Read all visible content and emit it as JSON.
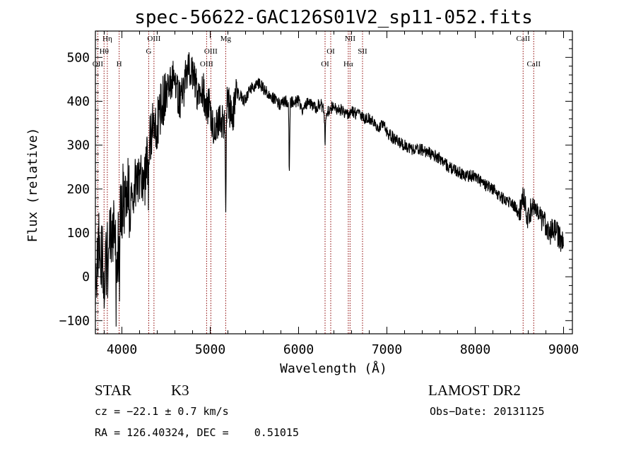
{
  "chart_data": {
    "type": "line",
    "title": "spec-56622-GAC126S01V2_sp11-052.fits",
    "xlabel": "Wavelength (Å)",
    "ylabel": "Flux (relative)",
    "xlim": [
      3700,
      9100
    ],
    "ylim": [
      -130,
      560
    ],
    "x_ticks": [
      4000,
      5000,
      6000,
      7000,
      8000,
      9000
    ],
    "y_ticks": [
      -100,
      0,
      100,
      200,
      300,
      400,
      500
    ],
    "grid": false,
    "line_color": "#000000",
    "marker_color": "#8b0000",
    "series": [
      {
        "x": [
          3700,
          3750,
          3800,
          3850,
          3900,
          3950,
          4000,
          4050,
          4100,
          4150,
          4200,
          4250,
          4300,
          4350,
          4400,
          4450,
          4500,
          4550,
          4600,
          4650,
          4700,
          4750,
          4800,
          4850,
          4900,
          4950,
          5000,
          5050,
          5100,
          5150,
          5200,
          5250,
          5300,
          5350,
          5400,
          5450,
          5500,
          5550,
          5600,
          5650,
          5700,
          5750,
          5800,
          5850,
          5900,
          5950,
          6000,
          6050,
          6100,
          6150,
          6200,
          6250,
          6300,
          6350,
          6400,
          6450,
          6500,
          6550,
          6600,
          6650,
          6700,
          6750,
          6800,
          6850,
          6900,
          6950,
          7000,
          7100,
          7200,
          7300,
          7400,
          7500,
          7600,
          7700,
          7800,
          7900,
          8000,
          8100,
          8200,
          8300,
          8400,
          8450,
          8500,
          8540,
          8600,
          8650,
          8700,
          8750,
          8800,
          8850,
          8900,
          8950,
          9000
        ],
        "y": [
          20,
          80,
          0,
          50,
          120,
          60,
          170,
          200,
          160,
          210,
          230,
          200,
          290,
          340,
          350,
          390,
          420,
          440,
          460,
          400,
          430,
          480,
          470,
          420,
          440,
          400,
          380,
          330,
          370,
          350,
          400,
          360,
          420,
          410,
          400,
          430,
          430,
          440,
          430,
          420,
          410,
          400,
          390,
          400,
          395,
          400,
          400,
          380,
          395,
          390,
          385,
          395,
          370,
          380,
          390,
          380,
          380,
          370,
          380,
          370,
          370,
          360,
          360,
          350,
          340,
          350,
          330,
          310,
          300,
          290,
          290,
          280,
          270,
          250,
          240,
          230,
          230,
          210,
          200,
          180,
          170,
          160,
          140,
          190,
          130,
          170,
          140,
          130,
          120,
          100,
          110,
          90,
          70
        ]
      }
    ],
    "lines": [
      {
        "label": "Hη",
        "x": 3835
      },
      {
        "label": "Hθ",
        "x": 3798
      },
      {
        "label": "OII",
        "x": 3727
      },
      {
        "label": "H",
        "x": 3969
      },
      {
        "label": "OIII",
        "x": 4363
      },
      {
        "label": "G",
        "x": 4304
      },
      {
        "label": "OIII",
        "x": 5007
      },
      {
        "label": "OIII",
        "x": 4959
      },
      {
        "label": "Mg",
        "x": 5175
      },
      {
        "label": "NII",
        "x": 6583
      },
      {
        "label": "OI",
        "x": 6364
      },
      {
        "label": "SII",
        "x": 6724
      },
      {
        "label": "OI",
        "x": 6300
      },
      {
        "label": "Hα",
        "x": 6563
      },
      {
        "label": "CaII",
        "x": 8542
      },
      {
        "label": "CaII",
        "x": 8662
      }
    ],
    "absorption_dips": [
      {
        "x": 5175,
        "depth": 200
      },
      {
        "x": 5895,
        "depth": 150
      },
      {
        "x": 6300,
        "depth": 60
      },
      {
        "x": 4300,
        "depth": 80
      },
      {
        "x": 3970,
        "depth": 100
      },
      {
        "x": 3935,
        "depth": 120
      }
    ]
  },
  "info": {
    "object_type": "STAR",
    "subclass": "K3",
    "survey": "LAMOST DR2",
    "cz": "cz = −22.1 ± 0.7 km/s",
    "obs_date": "Obs−Date: 20131125",
    "coords": "RA = 126.40324, DEC =    0.51015"
  }
}
